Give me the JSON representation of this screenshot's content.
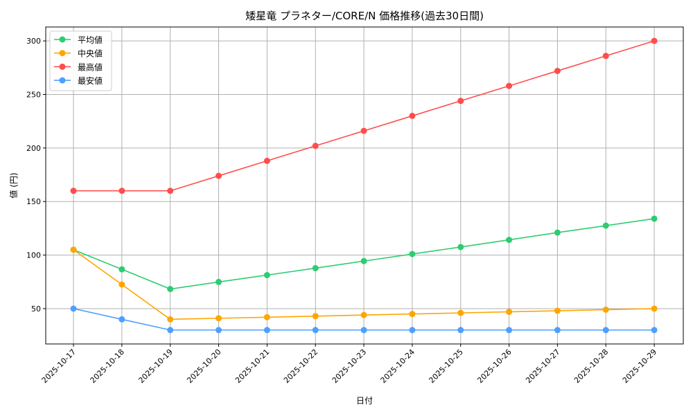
{
  "chart_data": {
    "type": "line",
    "title": "矮星竜 プラネター/CORE/N 価格推移(過去30日間)",
    "xlabel": "日付",
    "ylabel": "値 (円)",
    "categories": [
      "2025-10-17",
      "2025-10-18",
      "2025-10-19",
      "2025-10-20",
      "2025-10-21",
      "2025-10-22",
      "2025-10-23",
      "2025-10-24",
      "2025-10-25",
      "2025-10-26",
      "2025-10-27",
      "2025-10-28",
      "2025-10-29"
    ],
    "ylim": [
      17,
      313
    ],
    "yticks": [
      50,
      100,
      150,
      200,
      250,
      300
    ],
    "grid": true,
    "legend_position": "top-left",
    "series": [
      {
        "name": "平均値",
        "color": "#2ecc71",
        "values": [
          105,
          86.7,
          68.3,
          74.9,
          81.3,
          87.8,
          94.4,
          101,
          107.5,
          114.2,
          121,
          127.5,
          134
        ]
      },
      {
        "name": "中央値",
        "color": "#ffa500",
        "values": [
          105,
          72.5,
          40,
          41,
          42,
          43,
          44,
          45,
          46,
          47,
          48,
          49,
          50
        ]
      },
      {
        "name": "最高値",
        "color": "#ff4d4d",
        "values": [
          160,
          160,
          160,
          174,
          188,
          202,
          216,
          230,
          244,
          258,
          272,
          286,
          300
        ]
      },
      {
        "name": "最安値",
        "color": "#4d9fff",
        "values": [
          50,
          40,
          30,
          30,
          30,
          30,
          30,
          30,
          30,
          30,
          30,
          30,
          30
        ]
      }
    ]
  }
}
